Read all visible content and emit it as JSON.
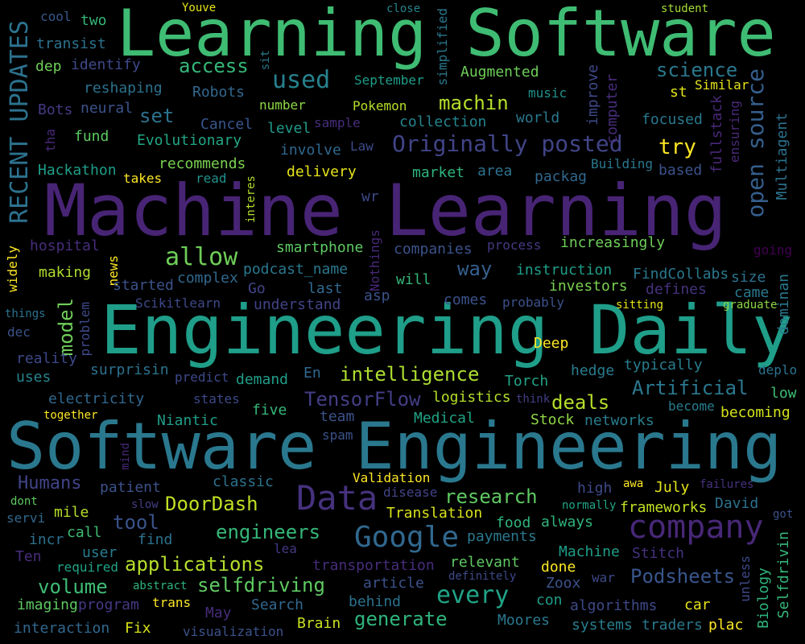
{
  "words": [
    {
      "text": "Learning Software",
      "color": "#3fbc73"
    },
    {
      "text": "Machine Learning",
      "color": "#482475"
    },
    {
      "text": "Engineering Daily",
      "color": "#1f9e89"
    },
    {
      "text": "Software Engineering",
      "color": "#2a788e"
    },
    {
      "text": "RECENT UPDATES",
      "color": "#2c728e"
    },
    {
      "text": "Originally posted",
      "color": "#414487"
    },
    {
      "text": "open source",
      "color": "#355f8d"
    },
    {
      "text": "company",
      "color": "#482878"
    },
    {
      "text": "Data",
      "color": "#46327e"
    },
    {
      "text": "Google",
      "color": "#31688e"
    },
    {
      "text": "allow",
      "color": "#6ece58"
    },
    {
      "text": "used",
      "color": "#26828e"
    },
    {
      "text": "machin",
      "color": "#b5de2b"
    },
    {
      "text": "science",
      "color": "#2a788e"
    },
    {
      "text": "access",
      "color": "#35b779"
    },
    {
      "text": "try",
      "color": "#fde725"
    },
    {
      "text": "set",
      "color": "#2c728e"
    },
    {
      "text": "intelligence",
      "color": "#addc30"
    },
    {
      "text": "TensorFlow",
      "color": "#433e85"
    },
    {
      "text": "Artificial",
      "color": "#2a788e"
    },
    {
      "text": "every",
      "color": "#20a486"
    },
    {
      "text": "generate",
      "color": "#2fb47c"
    },
    {
      "text": "applications",
      "color": "#b5de2b"
    },
    {
      "text": "selfdriving",
      "color": "#5ec962"
    },
    {
      "text": "Podsheets",
      "color": "#39568c"
    },
    {
      "text": "research",
      "color": "#5ec962"
    },
    {
      "text": "DoorDash",
      "color": "#c2df23"
    },
    {
      "text": "engineers",
      "color": "#35b779"
    },
    {
      "text": "volume",
      "color": "#3fbc73"
    },
    {
      "text": "tool",
      "color": "#3b528b"
    },
    {
      "text": "Humans",
      "color": "#414487"
    },
    {
      "text": "model",
      "color": "#6ece58"
    },
    {
      "text": "deals",
      "color": "#b5de2b"
    },
    {
      "text": "way",
      "color": "#355f8d"
    },
    {
      "text": "Deep",
      "color": "#fde725"
    },
    {
      "text": "Translation",
      "color": "#d8e219"
    },
    {
      "text": "Validation",
      "color": "#fde725"
    },
    {
      "text": "cool",
      "color": "#38588c"
    },
    {
      "text": "two",
      "color": "#35b779"
    },
    {
      "text": "Youve",
      "color": "#e5e419"
    },
    {
      "text": "close",
      "color": "#25848e"
    },
    {
      "text": "student",
      "color": "#a5db36"
    },
    {
      "text": "transist",
      "color": "#2c728e"
    },
    {
      "text": "dep",
      "color": "#6ece58"
    },
    {
      "text": "identify",
      "color": "#3e4989"
    },
    {
      "text": "reshaping",
      "color": "#2c728e"
    },
    {
      "text": "Robots",
      "color": "#31688e"
    },
    {
      "text": "Bots",
      "color": "#443983"
    },
    {
      "text": "neural",
      "color": "#3b528b"
    },
    {
      "text": "fund",
      "color": "#5ec962"
    },
    {
      "text": "Evolutionary",
      "color": "#22a785"
    },
    {
      "text": "Cancel",
      "color": "#39568c"
    },
    {
      "text": "level",
      "color": "#1f9a8a"
    },
    {
      "text": "sample",
      "color": "#472d7b"
    },
    {
      "text": "collection",
      "color": "#25858e"
    },
    {
      "text": "world",
      "color": "#2a788e"
    },
    {
      "text": "focused",
      "color": "#2a788e"
    },
    {
      "text": "Similar",
      "color": "#e5e419"
    },
    {
      "text": "st",
      "color": "#e5e419"
    },
    {
      "text": "September",
      "color": "#1f9e89"
    },
    {
      "text": "Augmented",
      "color": "#6ece58"
    },
    {
      "text": "music",
      "color": "#21918c"
    },
    {
      "text": "Pokemon",
      "color": "#b5de2b"
    },
    {
      "text": "number",
      "color": "#8fd744"
    },
    {
      "text": "Hackathon",
      "color": "#1f9e89"
    },
    {
      "text": "takes",
      "color": "#fde725"
    },
    {
      "text": "recommends",
      "color": "#7ad151"
    },
    {
      "text": "read",
      "color": "#21918c"
    },
    {
      "text": "delivery",
      "color": "#e5e419"
    },
    {
      "text": "market",
      "color": "#2fb47c"
    },
    {
      "text": "area",
      "color": "#2c728e"
    },
    {
      "text": "packag",
      "color": "#31688e"
    },
    {
      "text": "Building",
      "color": "#2a788e"
    },
    {
      "text": "based",
      "color": "#3b528b"
    },
    {
      "text": "involve",
      "color": "#31688e"
    },
    {
      "text": "Law",
      "color": "#3e4a89"
    },
    {
      "text": "hospital",
      "color": "#472d7b"
    },
    {
      "text": "news",
      "color": "#fde725"
    },
    {
      "text": "making",
      "color": "#addc30"
    },
    {
      "text": "started",
      "color": "#3b528b"
    },
    {
      "text": "complex",
      "color": "#31688e"
    },
    {
      "text": "podcast_name",
      "color": "#2a788e"
    },
    {
      "text": "Go",
      "color": "#414487"
    },
    {
      "text": "last",
      "color": "#31688e"
    },
    {
      "text": "smartphone",
      "color": "#5ec962"
    },
    {
      "text": "companies",
      "color": "#3b528b"
    },
    {
      "text": "process",
      "color": "#443a83"
    },
    {
      "text": "increasingly",
      "color": "#6ece58"
    },
    {
      "text": "instruction",
      "color": "#1f9e89"
    },
    {
      "text": "FindCollabs",
      "color": "#2a788e"
    },
    {
      "text": "investors",
      "color": "#7ad151"
    },
    {
      "text": "defines",
      "color": "#46327e"
    },
    {
      "text": "size",
      "color": "#2c728e"
    },
    {
      "text": "came",
      "color": "#2a788e"
    },
    {
      "text": "going",
      "color": "#440154"
    },
    {
      "text": "Scikitlearn",
      "color": "#3e4989"
    },
    {
      "text": "understand",
      "color": "#414487"
    },
    {
      "text": "asp",
      "color": "#3b528b"
    },
    {
      "text": "will",
      "color": "#35b779"
    },
    {
      "text": "comes",
      "color": "#3b528b"
    },
    {
      "text": "probably",
      "color": "#3b528b"
    },
    {
      "text": "sitting",
      "color": "#e5e419"
    },
    {
      "text": "graduate",
      "color": "#8fd744"
    },
    {
      "text": "things",
      "color": "#2c728e"
    },
    {
      "text": "dec",
      "color": "#3b528b"
    },
    {
      "text": "reality",
      "color": "#3e4989"
    },
    {
      "text": "uses",
      "color": "#25858e"
    },
    {
      "text": "surprisin",
      "color": "#2c728e"
    },
    {
      "text": "predict",
      "color": "#3e4989"
    },
    {
      "text": "demand",
      "color": "#1f9e89"
    },
    {
      "text": "En",
      "color": "#31688e"
    },
    {
      "text": "Torch",
      "color": "#20a486"
    },
    {
      "text": "hedge",
      "color": "#287d8e"
    },
    {
      "text": "typically",
      "color": "#287d8e"
    },
    {
      "text": "deplo",
      "color": "#2c728e"
    },
    {
      "text": "low",
      "color": "#3fbc73"
    },
    {
      "text": "electricity",
      "color": "#31688e"
    },
    {
      "text": "states",
      "color": "#3e4989"
    },
    {
      "text": "five",
      "color": "#35b779"
    },
    {
      "text": "logistics",
      "color": "#b5de2b"
    },
    {
      "text": "think",
      "color": "#433e85"
    },
    {
      "text": "become",
      "color": "#287d8e"
    },
    {
      "text": "becoming",
      "color": "#d2e21b"
    },
    {
      "text": "together",
      "color": "#fde725"
    },
    {
      "text": "Niantic",
      "color": "#1f9e89"
    },
    {
      "text": "team",
      "color": "#3b528b"
    },
    {
      "text": "Medical",
      "color": "#20a486"
    },
    {
      "text": "Stock",
      "color": "#8fd744"
    },
    {
      "text": "networks",
      "color": "#287d8e"
    },
    {
      "text": "spam",
      "color": "#3b528b"
    },
    {
      "text": "patient",
      "color": "#3b528b"
    },
    {
      "text": "classic",
      "color": "#2c728e"
    },
    {
      "text": "disease",
      "color": "#414487"
    },
    {
      "text": "high",
      "color": "#3e4989"
    },
    {
      "text": "awa",
      "color": "#fde725"
    },
    {
      "text": "July",
      "color": "#e5e419"
    },
    {
      "text": "failures",
      "color": "#46327e"
    },
    {
      "text": "normally",
      "color": "#20a486"
    },
    {
      "text": "frameworks",
      "color": "#c2df23"
    },
    {
      "text": "David",
      "color": "#2c728e"
    },
    {
      "text": "dont",
      "color": "#5ec962"
    },
    {
      "text": "servi",
      "color": "#31688e"
    },
    {
      "text": "mile",
      "color": "#b5de2b"
    },
    {
      "text": "slow",
      "color": "#433e85"
    },
    {
      "text": "incr",
      "color": "#2c728e"
    },
    {
      "text": "call",
      "color": "#3fbc73"
    },
    {
      "text": "find",
      "color": "#2c728e"
    },
    {
      "text": "payments",
      "color": "#2a788e"
    },
    {
      "text": "always",
      "color": "#2fb47c"
    },
    {
      "text": "food",
      "color": "#2fb47c"
    },
    {
      "text": "got",
      "color": "#3b528b"
    },
    {
      "text": "Ten",
      "color": "#472d7b"
    },
    {
      "text": "user",
      "color": "#287d8e"
    },
    {
      "text": "lea",
      "color": "#443983"
    },
    {
      "text": "required",
      "color": "#20a486"
    },
    {
      "text": "abstract",
      "color": "#2fb47c"
    },
    {
      "text": "transportation",
      "color": "#472d7b"
    },
    {
      "text": "relevant",
      "color": "#5ec962"
    },
    {
      "text": "done",
      "color": "#fde725"
    },
    {
      "text": "Machine",
      "color": "#1f9e89"
    },
    {
      "text": "Stitch",
      "color": "#46327e"
    },
    {
      "text": "article",
      "color": "#3b528b"
    },
    {
      "text": "definitely",
      "color": "#3e4989"
    },
    {
      "text": "Zoox",
      "color": "#3b528b"
    },
    {
      "text": "war",
      "color": "#3e4989"
    },
    {
      "text": "imaging",
      "color": "#5ec962"
    },
    {
      "text": "program",
      "color": "#443983"
    },
    {
      "text": "trans",
      "color": "#fde725"
    },
    {
      "text": "Search",
      "color": "#31688e"
    },
    {
      "text": "behind",
      "color": "#2c728e"
    },
    {
      "text": "con",
      "color": "#1f9e89"
    },
    {
      "text": "algorithms",
      "color": "#3e4989"
    },
    {
      "text": "car",
      "color": "#e5e419"
    },
    {
      "text": "May",
      "color": "#472d7b"
    },
    {
      "text": "interaction",
      "color": "#31688e"
    },
    {
      "text": "Fix",
      "color": "#d8e219"
    },
    {
      "text": "visualization",
      "color": "#3b528b"
    },
    {
      "text": "Brain",
      "color": "#c8e020"
    },
    {
      "text": "Moores",
      "color": "#2a788e"
    },
    {
      "text": "systems",
      "color": "#287d8e"
    },
    {
      "text": "traders",
      "color": "#2a788e"
    },
    {
      "text": "plac",
      "color": "#fde725"
    },
    {
      "text": "simplified",
      "color": "#2a788e"
    },
    {
      "text": "sit",
      "color": "#2a788e"
    },
    {
      "text": "improve",
      "color": "#3e4989"
    },
    {
      "text": "computer",
      "color": "#472d7b"
    },
    {
      "text": "fullstack",
      "color": "#482878"
    },
    {
      "text": "ensuring",
      "color": "#482878"
    },
    {
      "text": "Multiagent",
      "color": "#2c728e"
    },
    {
      "text": "tha",
      "color": "#482878"
    },
    {
      "text": "widely",
      "color": "#fde725"
    },
    {
      "text": "interes",
      "color": "#b5de2b"
    },
    {
      "text": "wr",
      "color": "#3e4989"
    },
    {
      "text": "Nothings",
      "color": "#482878"
    },
    {
      "text": "problem",
      "color": "#3e4989"
    },
    {
      "text": "mind",
      "color": "#482878"
    },
    {
      "text": "dominan",
      "color": "#2a788e"
    },
    {
      "text": "unless",
      "color": "#3e4989"
    },
    {
      "text": "Biology",
      "color": "#2fb47c"
    },
    {
      "text": "Selfdrivin",
      "color": "#35b779"
    }
  ]
}
